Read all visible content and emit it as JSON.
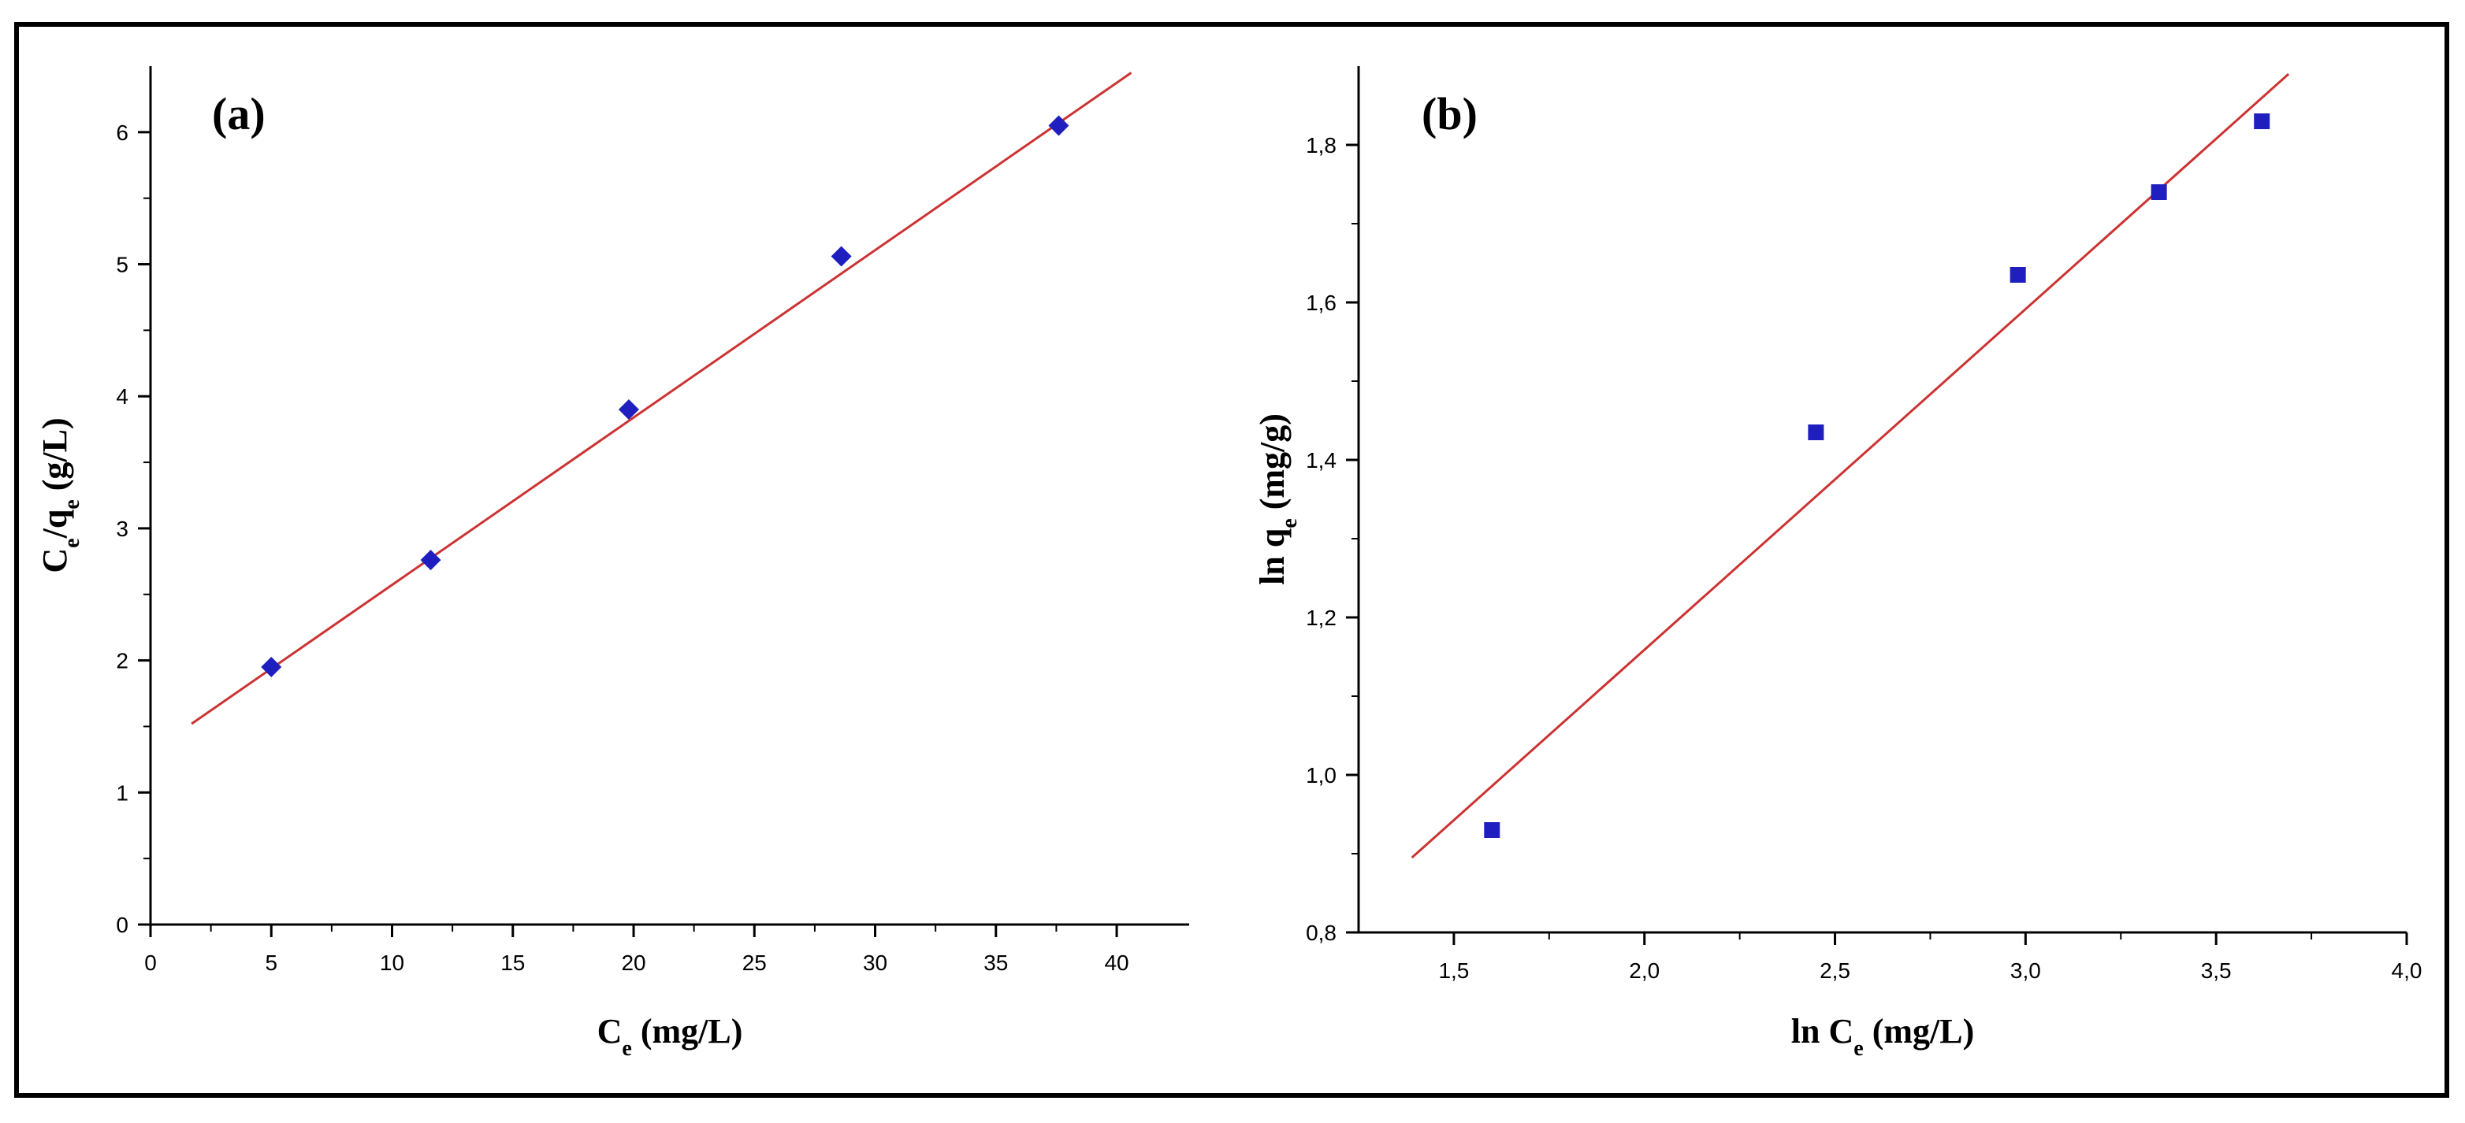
{
  "chart_data": [
    {
      "type": "scatter",
      "panel_label": "(a)",
      "xlabel": "Ce (mg/L)",
      "ylabel": "Ce/qe (g/L)",
      "xlim": [
        0,
        43
      ],
      "ylim": [
        0,
        6.5
      ],
      "xticks": [
        0,
        5,
        10,
        15,
        20,
        25,
        30,
        35,
        40
      ],
      "yticks": [
        0,
        1,
        2,
        3,
        4,
        5,
        6
      ],
      "xtick_labels": [
        "0",
        "5",
        "10",
        "15",
        "20",
        "25",
        "30",
        "35",
        "40"
      ],
      "ytick_labels": [
        "0",
        "1",
        "2",
        "3",
        "4",
        "5",
        "6"
      ],
      "series": [
        {
          "marker": "diamond",
          "color": "#1f1fbf",
          "x": [
            5.0,
            11.6,
            19.8,
            28.6,
            37.6
          ],
          "y": [
            1.95,
            2.76,
            3.9,
            5.06,
            6.05
          ]
        }
      ],
      "fit_line": {
        "color": "#cc3333",
        "x": [
          1.7,
          40.6
        ],
        "y": [
          1.52,
          6.45
        ]
      },
      "grid": false
    },
    {
      "type": "scatter",
      "panel_label": "(b)",
      "xlabel": "ln Ce (mg/L)",
      "ylabel": "ln qe (mg/g)",
      "xlim": [
        1.25,
        4.0
      ],
      "ylim": [
        0.8,
        1.9
      ],
      "xticks": [
        1.5,
        2.0,
        2.5,
        3.0,
        3.5,
        4.0
      ],
      "yticks": [
        0.8,
        1.0,
        1.2,
        1.4,
        1.6,
        1.8
      ],
      "xtick_labels": [
        "1,5",
        "2,0",
        "2,5",
        "3,0",
        "3,5",
        "4,0"
      ],
      "ytick_labels": [
        "0,8",
        "1,0",
        "1,2",
        "1,4",
        "1,6",
        "1,8"
      ],
      "series": [
        {
          "marker": "square",
          "color": "#1f1fbf",
          "x": [
            1.6,
            2.45,
            2.98,
            3.35,
            3.62
          ],
          "y": [
            0.93,
            1.435,
            1.635,
            1.74,
            1.83
          ]
        }
      ],
      "fit_line": {
        "color": "#cc3333",
        "x": [
          1.39,
          3.69
        ],
        "y": [
          0.895,
          1.89
        ]
      },
      "grid": false
    }
  ]
}
